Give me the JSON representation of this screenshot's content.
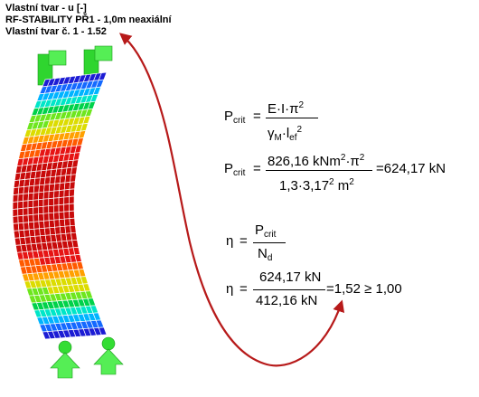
{
  "header": {
    "line1": "Vlastní tvar - u [-]",
    "line2": "RF-STABILITY PŘ1 - 1,0m neaxiální",
    "line3": "Vlastní tvar č. 1 - 1.52"
  },
  "formula_pcrit_symbolic": {
    "lhs": "P",
    "lhs_sub": "crit",
    "eq": "=",
    "num": "E·I·π",
    "num_sup": "2",
    "den_gamma": "γ",
    "den_gamma_sub": "M",
    "den_dot": "·l",
    "den_l_sub": "ef",
    "den_sup": "2"
  },
  "formula_pcrit_numeric": {
    "lhs": "P",
    "lhs_sub": "crit",
    "eq": "=",
    "num": "826,16 kNm",
    "num_sup1": "2",
    "num_mid": "·π",
    "num_sup2": "2",
    "den": "1,3·3,17",
    "den_sup1": "2",
    "den_unit": " m",
    "den_sup2": "2",
    "result": "=624,17 kN"
  },
  "formula_eta_symbolic": {
    "lhs": "η",
    "eq": "=",
    "num": "P",
    "num_sub": "crit",
    "den": "N",
    "den_sub": "d"
  },
  "formula_eta_numeric": {
    "lhs": "η",
    "eq": "=",
    "num": "624,17 kN",
    "den": "412,16 kN",
    "result": "=1,52 ≥ 1,00"
  },
  "colors": {
    "arrow": "#b71a1a",
    "support": "#33dd33",
    "mesh_line": "#ffffff",
    "palette": [
      "#1c1cd4",
      "#1469ff",
      "#00b4ff",
      "#00e6c8",
      "#00d24a",
      "#6ee61e",
      "#dcdc00",
      "#ffa000",
      "#ff5a00",
      "#e61414",
      "#c80a0a"
    ]
  }
}
